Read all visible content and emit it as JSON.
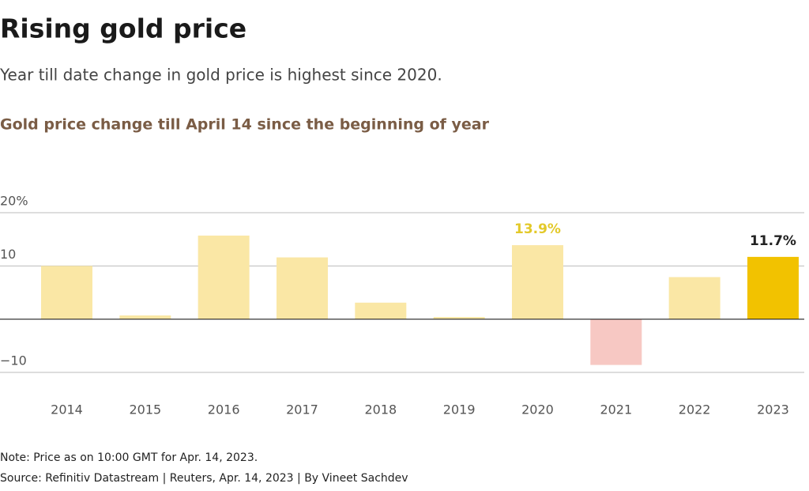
{
  "chart_data": {
    "type": "bar",
    "title": "Rising gold price",
    "subtitle": "Year till date change in gold price is highest since 2020.",
    "chart_title": "Gold price change till April 14 since the beginning of year",
    "categories": [
      "2014",
      "2015",
      "2016",
      "2017",
      "2018",
      "2019",
      "2020",
      "2021",
      "2022",
      "2023"
    ],
    "values": [
      10.0,
      0.7,
      15.7,
      11.6,
      3.1,
      0.4,
      13.9,
      -8.6,
      7.9,
      11.7
    ],
    "value_labels": [
      null,
      null,
      null,
      null,
      null,
      null,
      "13.9%",
      null,
      null,
      "11.7%"
    ],
    "colors": [
      "#fae7a5",
      "#fae7a5",
      "#fae7a5",
      "#fae7a5",
      "#fae7a5",
      "#fae7a5",
      "#fae7a5",
      "#f7c8c3",
      "#fae7a5",
      "#f2c200"
    ],
    "value_label_colors": [
      null,
      null,
      null,
      null,
      null,
      null,
      "#e3c92a",
      null,
      null,
      "#222222"
    ],
    "ylim": [
      -10,
      20
    ],
    "yticks": [
      {
        "value": 20,
        "label": "20%"
      },
      10,
      {
        "value": -10,
        "label": "−10"
      }
    ],
    "grid": true,
    "note": "Note: Price as on 10:00 GMT for Apr. 14, 2023.",
    "source": "Source: Refinitiv Datastream | Reuters, Apr. 14, 2023 | By Vineet Sachdev"
  }
}
